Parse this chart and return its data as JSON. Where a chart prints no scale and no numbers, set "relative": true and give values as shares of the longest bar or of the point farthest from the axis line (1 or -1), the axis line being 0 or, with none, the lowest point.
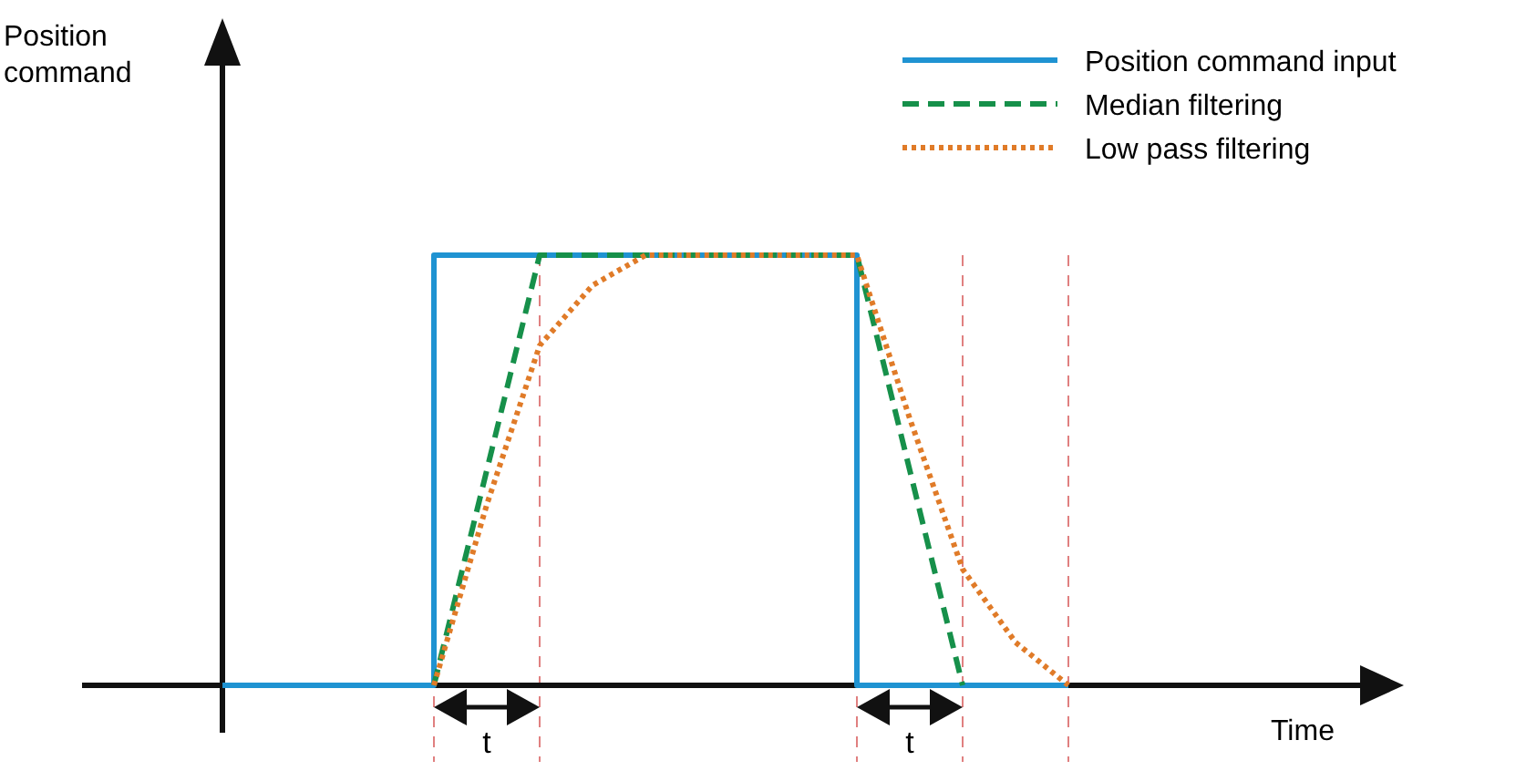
{
  "chart_data": {
    "type": "line",
    "relative": true,
    "tick_labels": false,
    "grid": "x",
    "legend": "top right",
    "categories": [
      null,
      null,
      null,
      null,
      null,
      null,
      null,
      null,
      null,
      null,
      null,
      null,
      null,
      null,
      null,
      null,
      null
    ],
    "series": [
      {
        "name": "Position command input",
        "type": "step",
        "color": "#1f93d2",
        "line_style": "solid",
        "values": [
          0,
          0,
          0,
          0,
          1,
          1,
          1,
          1,
          1,
          1,
          1,
          1,
          0,
          0,
          0,
          0,
          0
        ]
      },
      {
        "name": "Median filtering",
        "color": "#16904a",
        "line_style": "dashed",
        "values": [
          null,
          null,
          null,
          null,
          0,
          0.5,
          1,
          1,
          1,
          1,
          1,
          1,
          1,
          0.5,
          0,
          null,
          null
        ]
      },
      {
        "name": "Low pass filtering",
        "color": "#e07b28",
        "line_style": "dotted",
        "values": [
          null,
          null,
          null,
          null,
          0,
          0.42,
          0.79,
          0.93,
          1,
          1,
          1,
          1,
          1,
          0.62,
          0.27,
          0.1,
          0
        ]
      }
    ],
    "annotations": [
      "Position command",
      "Time",
      "t",
      "t"
    ]
  }
}
